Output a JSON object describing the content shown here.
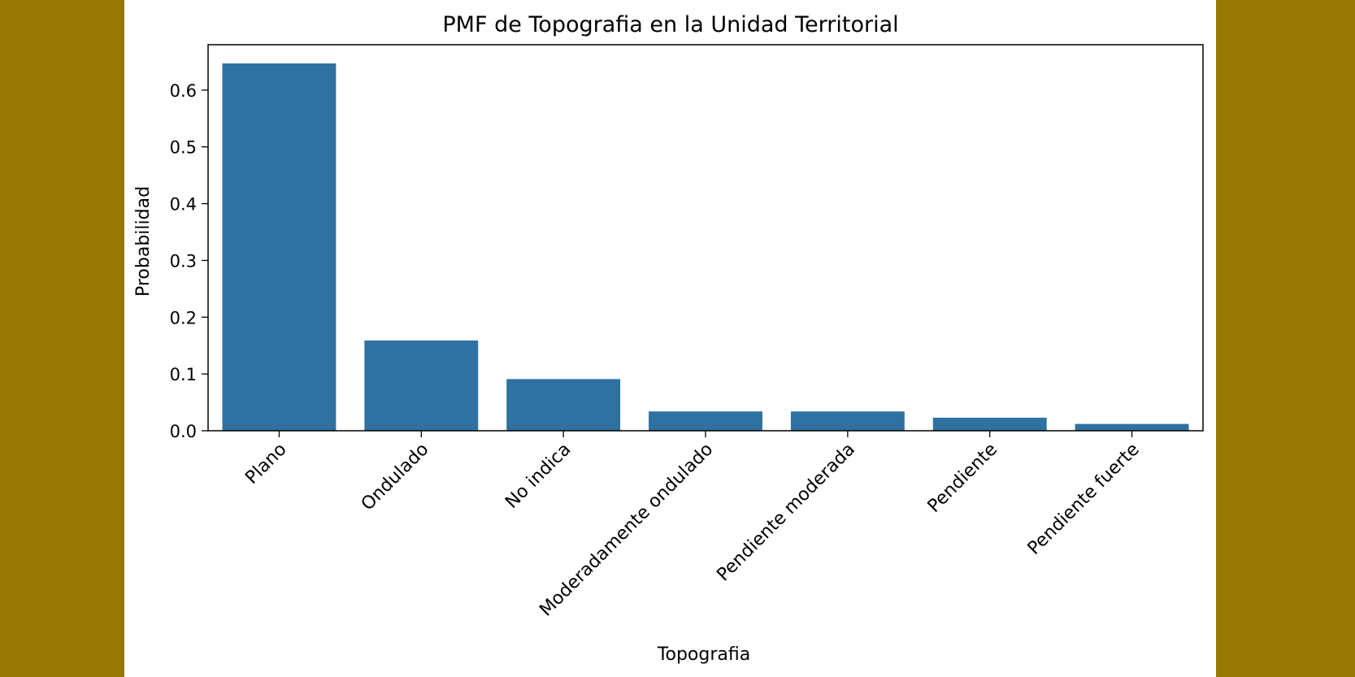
{
  "colors": {
    "background": "#977803",
    "figure": "#ffffff",
    "bar": "#2f71a1",
    "axis": "#000000"
  },
  "chart_data": {
    "type": "bar",
    "title": "PMF de Topografia en la Unidad Territorial",
    "xlabel": "Topografia",
    "ylabel": "Probabilidad",
    "categories": [
      "Plano",
      "Ondulado",
      "No indica",
      "Moderadamente ondulado",
      "Pendiente moderada",
      "Pendiente",
      "Pendiente fuerte"
    ],
    "values": [
      0.647,
      0.159,
      0.091,
      0.034,
      0.034,
      0.023,
      0.012
    ],
    "ylim": [
      0,
      0.68
    ],
    "yticks": [
      0.0,
      0.1,
      0.2,
      0.3,
      0.4,
      0.5,
      0.6
    ],
    "ytick_labels": [
      "0.0",
      "0.1",
      "0.2",
      "0.3",
      "0.4",
      "0.5",
      "0.6"
    ],
    "grid": false,
    "legend": "none"
  }
}
